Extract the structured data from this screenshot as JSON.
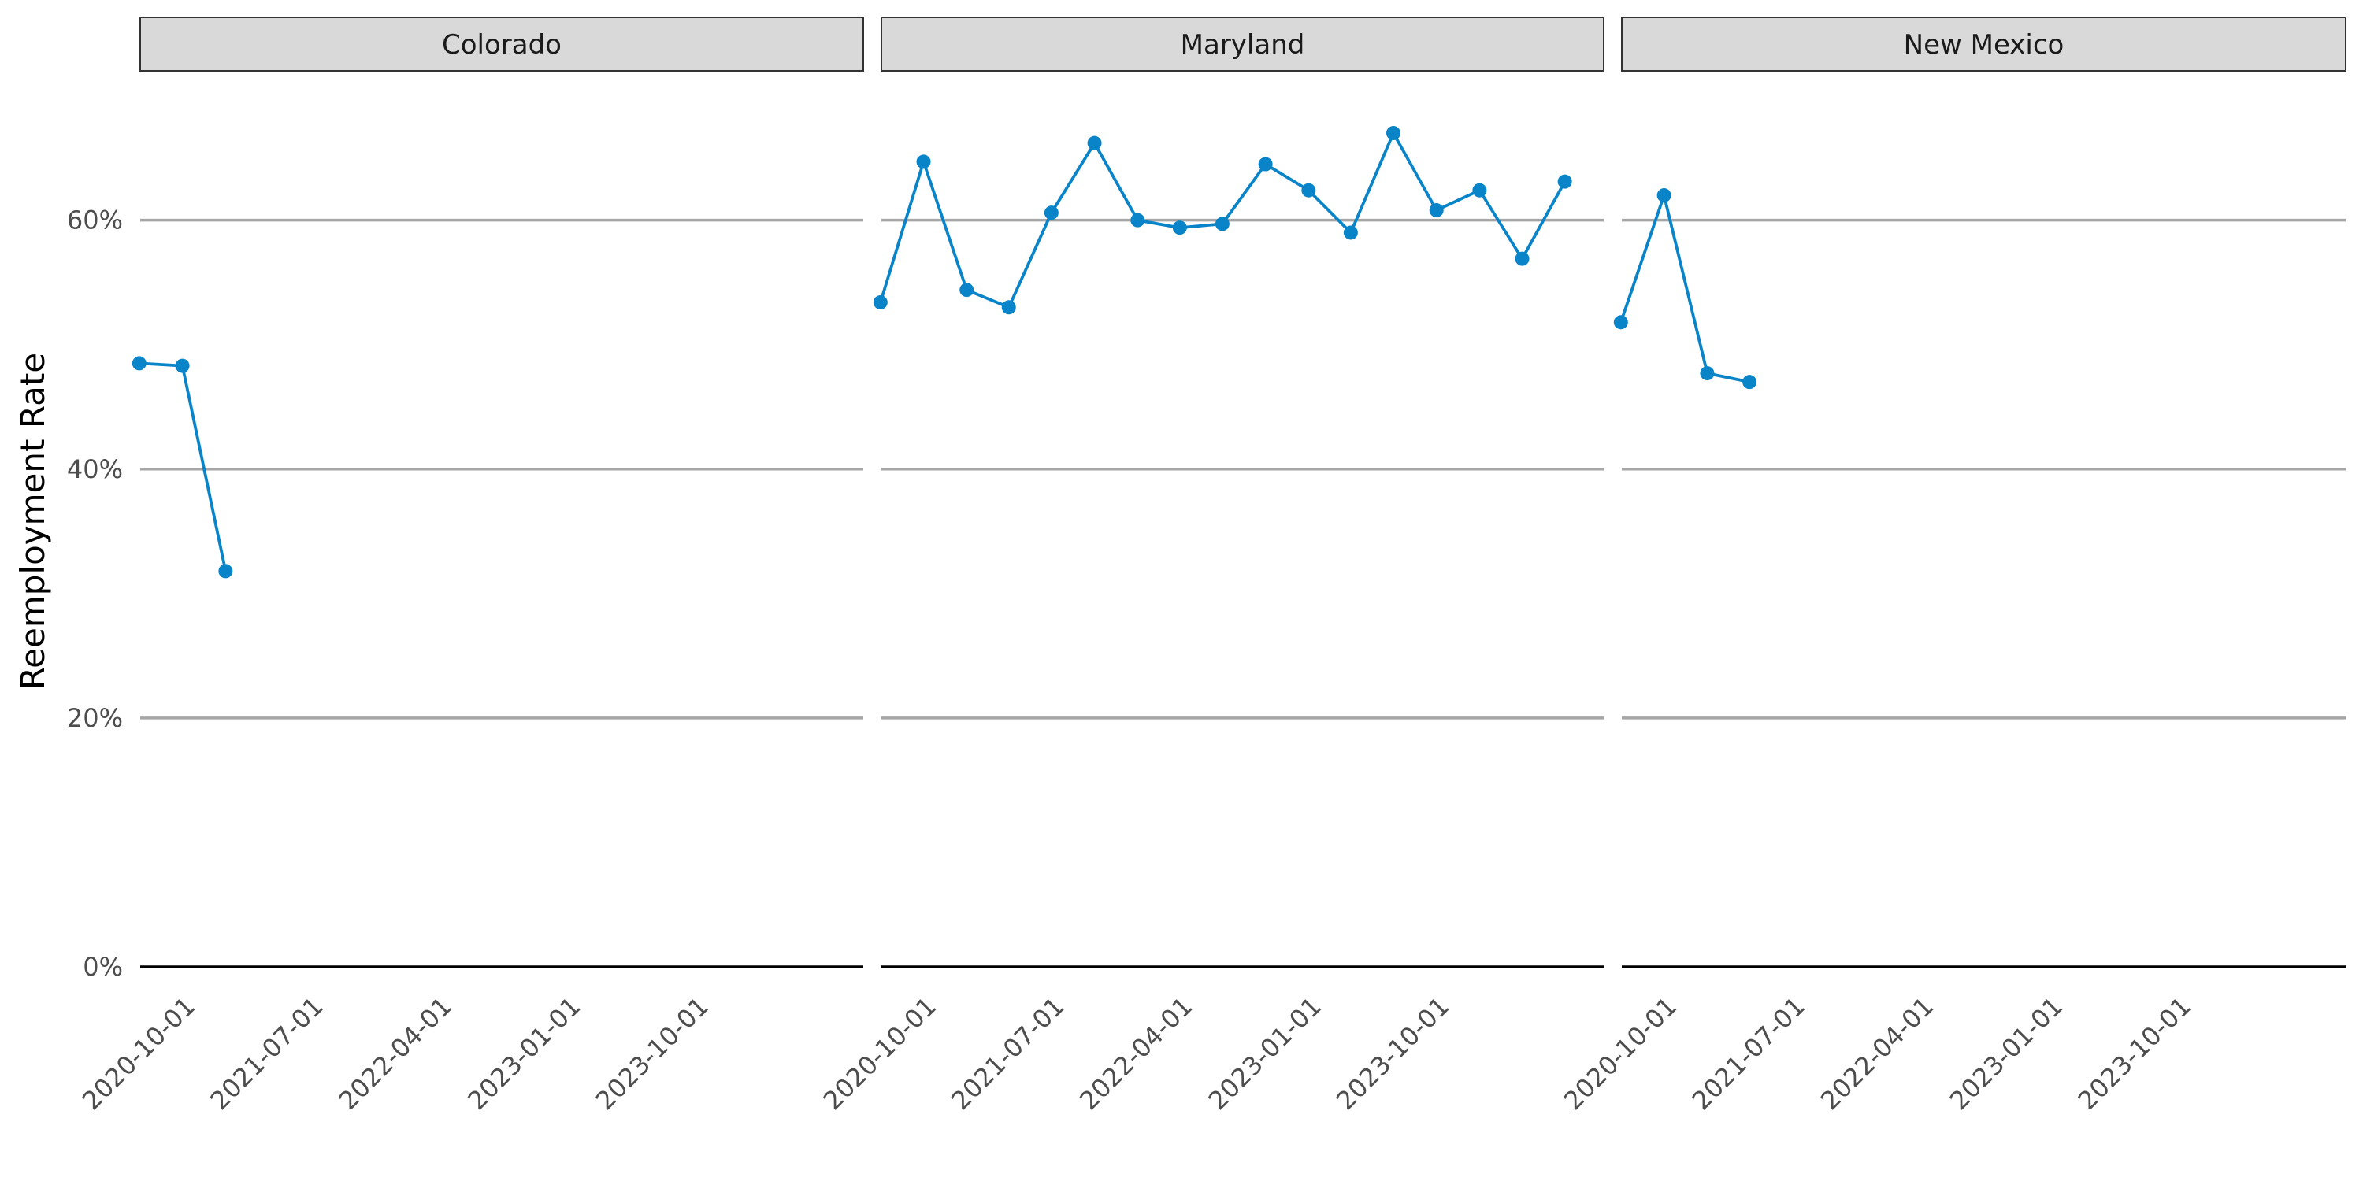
{
  "chart_data": {
    "type": "line",
    "ylabel": "Reemployment Rate",
    "y_tick_labels": [
      "0%",
      "20%",
      "40%",
      "60%"
    ],
    "y_ticks": [
      0,
      0.2,
      0.4,
      0.6
    ],
    "ylim": [
      0,
      0.72
    ],
    "xlim": [
      "2020-07-03",
      "2024-09-22"
    ],
    "x_ticks": [
      "2020-10-01",
      "2021-07-01",
      "2022-04-01",
      "2023-01-01",
      "2023-10-01"
    ],
    "grid": true,
    "line_color": "#0a84c8",
    "panels": [
      {
        "name": "Colorado",
        "points": [
          {
            "x": "2020-07-01",
            "y": 0.485
          },
          {
            "x": "2020-10-01",
            "y": 0.483
          },
          {
            "x": "2021-01-01",
            "y": 0.318
          }
        ]
      },
      {
        "name": "Maryland",
        "points": [
          {
            "x": "2020-07-01",
            "y": 0.534
          },
          {
            "x": "2020-10-01",
            "y": 0.647
          },
          {
            "x": "2021-01-01",
            "y": 0.544
          },
          {
            "x": "2021-04-01",
            "y": 0.53
          },
          {
            "x": "2021-07-01",
            "y": 0.606
          },
          {
            "x": "2021-10-01",
            "y": 0.662
          },
          {
            "x": "2022-01-01",
            "y": 0.6
          },
          {
            "x": "2022-04-01",
            "y": 0.594
          },
          {
            "x": "2022-07-01",
            "y": 0.597
          },
          {
            "x": "2022-10-01",
            "y": 0.645
          },
          {
            "x": "2023-01-01",
            "y": 0.624
          },
          {
            "x": "2023-04-01",
            "y": 0.59
          },
          {
            "x": "2023-07-01",
            "y": 0.67
          },
          {
            "x": "2023-10-01",
            "y": 0.608
          },
          {
            "x": "2024-01-01",
            "y": 0.624
          },
          {
            "x": "2024-04-01",
            "y": 0.569
          },
          {
            "x": "2024-07-01",
            "y": 0.631
          }
        ]
      },
      {
        "name": "New Mexico",
        "points": [
          {
            "x": "2020-07-01",
            "y": 0.518
          },
          {
            "x": "2020-10-01",
            "y": 0.62
          },
          {
            "x": "2021-01-01",
            "y": 0.477
          },
          {
            "x": "2021-04-01",
            "y": 0.47
          }
        ]
      }
    ]
  }
}
